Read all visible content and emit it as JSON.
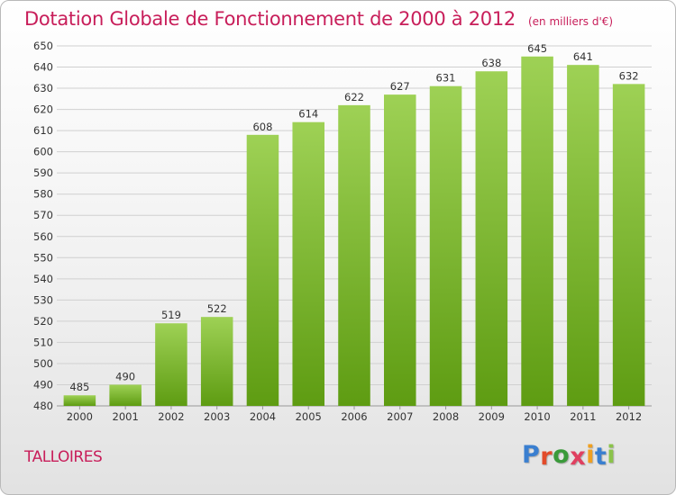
{
  "title": "Dotation Globale de Fonctionnement de 2000 à 2012",
  "unit": "(en milliers d'€)",
  "commune": "TALLOIRES",
  "brand": {
    "letters": [
      "P",
      "r",
      "o",
      "x",
      "i",
      "t",
      "i"
    ],
    "colors": [
      "#3a7fd0",
      "#e24b2a",
      "#3a9a3a",
      "#e04060",
      "#f0a020",
      "#3a7fd0",
      "#8bc34a"
    ]
  },
  "colors": {
    "bar_top": "#9ed155",
    "bar_bottom": "#5e9c12",
    "grid": "#d0d0d0",
    "axis_text": "#333333",
    "accent": "#c81e5a"
  },
  "chart_data": {
    "type": "bar",
    "title": "Dotation Globale de Fonctionnement de 2000 à 2012",
    "categories": [
      "2000",
      "2001",
      "2002",
      "2003",
      "2004",
      "2005",
      "2006",
      "2007",
      "2008",
      "2009",
      "2010",
      "2011",
      "2012"
    ],
    "values": [
      485,
      490,
      519,
      522,
      608,
      614,
      622,
      627,
      631,
      638,
      645,
      641,
      632
    ],
    "ylim": [
      480,
      650
    ],
    "yticks": [
      480,
      490,
      500,
      510,
      520,
      530,
      540,
      550,
      560,
      570,
      580,
      590,
      600,
      610,
      620,
      630,
      640,
      650
    ],
    "grid": true,
    "legend": "none",
    "xlabel": "",
    "ylabel": ""
  }
}
